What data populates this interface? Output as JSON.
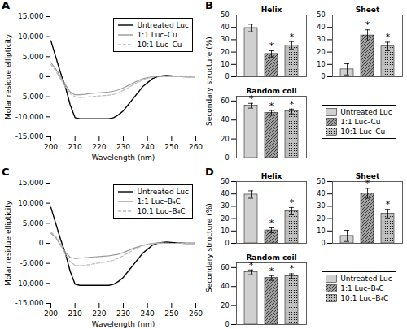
{
  "chart_data": [
    {
      "type": "line",
      "annotations": [
        {
          "text": "A"
        }
      ],
      "x_label": "Wavelength (nm)",
      "y_label": "Molar residue ellipticity",
      "x": [
        200,
        202,
        204,
        206,
        208,
        210,
        212,
        214,
        216,
        218,
        220,
        222,
        224,
        226,
        228,
        230,
        232,
        234,
        236,
        238,
        240,
        242,
        244,
        246,
        248,
        250,
        252,
        254,
        256,
        258,
        260
      ],
      "series": [
        {
          "name": "Untreated Luc",
          "color": "black",
          "line_style": "solid",
          "values": [
            9000,
            5000,
            1000,
            -2500,
            -7000,
            -10200,
            -10500,
            -10500,
            -10500,
            -10500,
            -10500,
            -10500,
            -10500,
            -10200,
            -9500,
            -8500,
            -7000,
            -5500,
            -4000,
            -2500,
            -1500,
            -500,
            0,
            200,
            300,
            200,
            100,
            50,
            0,
            0,
            0
          ]
        },
        {
          "name": "1:1 Luc–Cu",
          "color": "#999999",
          "line_style": "solid",
          "values": [
            3500,
            2000,
            0,
            -2000,
            -3800,
            -4500,
            -4500,
            -4400,
            -4200,
            -4100,
            -4000,
            -3900,
            -3800,
            -3600,
            -3300,
            -2800,
            -2200,
            -1600,
            -1000,
            -500,
            -200,
            0,
            100,
            100,
            50,
            0,
            0,
            0,
            0,
            0,
            0
          ]
        },
        {
          "name": "10:1 Luc–Cu",
          "color": "#bbbbbb",
          "line_style": "dashed",
          "values": [
            3000,
            1500,
            -500,
            -2500,
            -4200,
            -5000,
            -5200,
            -5100,
            -5000,
            -4900,
            -4800,
            -4700,
            -4600,
            -4400,
            -4000,
            -3400,
            -2800,
            -2000,
            -1400,
            -800,
            -400,
            -100,
            100,
            100,
            50,
            0,
            0,
            0,
            0,
            0,
            0
          ]
        }
      ],
      "xlim": [
        200,
        260
      ],
      "xticks": [
        200,
        210,
        220,
        230,
        240,
        250,
        260
      ],
      "ylim": [
        -15000,
        15000
      ],
      "yticks": [
        {
          "value": -15000,
          "label": "-15,000"
        },
        {
          "value": -10000,
          "label": "-10,000"
        },
        {
          "value": -5000,
          "label": "-5,000"
        },
        0,
        {
          "value": 5000,
          "label": "5,000"
        },
        {
          "value": 10000,
          "label": "10,000"
        },
        {
          "value": 15000,
          "label": "15,000"
        }
      ],
      "legend": "upper right"
    },
    {
      "type": "bar",
      "title": "Helix",
      "y_label": "Secondary structure (%)",
      "legend": "lower right",
      "annotations": [
        {
          "text": "B"
        },
        {
          "category": "1:1 Luc–Cu",
          "text": "*"
        },
        {
          "category": "10:1 Luc–Cu",
          "text": "*"
        }
      ],
      "categories": [
        "Untreated Luc",
        "1:1 Luc–Cu",
        "10:1 Luc–Cu"
      ],
      "values": [
        39.5,
        18.5,
        25.5
      ],
      "errors": [
        3.0,
        2.5,
        3.0
      ],
      "colors": [
        "#d0d0d0",
        "#a0a0a0",
        "#c0c0c0"
      ],
      "ylim": [
        0,
        50
      ],
      "yticks": [
        0,
        10,
        20,
        30,
        40,
        50
      ],
      "tick_labels": "y"
    },
    {
      "type": "bar",
      "title": "Sheet",
      "annotations": [
        {
          "category": "1:1 Luc–Cu",
          "text": "*"
        },
        {
          "category": "10:1 Luc–Cu",
          "text": "*"
        }
      ],
      "categories": [
        "Untreated Luc",
        "1:1 Luc–Cu",
        "10:1 Luc–Cu"
      ],
      "values": [
        6.0,
        33.5,
        24.5
      ],
      "errors": [
        4.5,
        4.5,
        3.5
      ],
      "colors": [
        "#d0d0d0",
        "#a0a0a0",
        "#c0c0c0"
      ],
      "ylim": [
        0,
        50
      ],
      "yticks": [
        0,
        10,
        20,
        30,
        40,
        50
      ],
      "tick_labels": "y"
    },
    {
      "type": "bar",
      "title": "Random coil",
      "annotations": [
        {
          "category": "Untreated Luc",
          "text": "*"
        },
        {
          "category": "1:1 Luc–Cu",
          "text": "*"
        },
        {
          "category": "10:1 Luc–Cu",
          "text": "*"
        }
      ],
      "categories": [
        "Untreated Luc",
        "1:1 Luc–Cu",
        "10:1 Luc–Cu"
      ],
      "values": [
        55.0,
        47.5,
        49.0
      ],
      "errors": [
        2.5,
        2.5,
        2.5
      ],
      "colors": [
        "#d0d0d0",
        "#a0a0a0",
        "#c0c0c0"
      ],
      "ylim": [
        0,
        65
      ],
      "yticks": [
        0,
        20,
        40,
        60
      ],
      "tick_labels": "y"
    },
    {
      "type": "line",
      "annotations": [
        {
          "text": "C"
        }
      ],
      "x_label": "Wavelength (nm)",
      "y_label": "Molar residue ellipticity",
      "x": [
        200,
        202,
        204,
        206,
        208,
        210,
        212,
        214,
        216,
        218,
        220,
        222,
        224,
        226,
        228,
        230,
        232,
        234,
        236,
        238,
        240,
        242,
        244,
        246,
        248,
        250,
        252,
        254,
        256,
        258,
        260
      ],
      "series": [
        {
          "name": "Untreated Luc",
          "color": "black",
          "line_style": "solid",
          "values": [
            9000,
            5000,
            1000,
            -2500,
            -7000,
            -10200,
            -10500,
            -10500,
            -10500,
            -10500,
            -10500,
            -10500,
            -10500,
            -10200,
            -9500,
            -8500,
            -7000,
            -5500,
            -4000,
            -2500,
            -1500,
            -500,
            0,
            200,
            300,
            200,
            100,
            50,
            0,
            0,
            0
          ]
        },
        {
          "name": "1:1 Luc–B₄C",
          "color": "#999999",
          "line_style": "solid",
          "values": [
            2500,
            1500,
            -500,
            -2200,
            -3500,
            -3800,
            -3700,
            -3600,
            -3500,
            -3400,
            -3300,
            -3200,
            -3100,
            -2900,
            -2700,
            -2300,
            -1800,
            -1300,
            -900,
            -500,
            -200,
            0,
            100,
            100,
            50,
            0,
            0,
            0,
            0,
            0,
            0
          ]
        },
        {
          "name": "10:1 Luc–B₄C",
          "color": "#bbbbbb",
          "line_style": "dashed",
          "values": [
            2800,
            1800,
            -200,
            -2800,
            -4500,
            -5500,
            -5600,
            -5500,
            -5300,
            -5100,
            -4900,
            -4700,
            -4500,
            -4200,
            -3700,
            -3100,
            -2400,
            -1700,
            -1100,
            -600,
            -300,
            -100,
            0,
            100,
            50,
            0,
            0,
            0,
            0,
            0,
            0
          ]
        }
      ],
      "xlim": [
        200,
        260
      ],
      "xticks": [
        200,
        210,
        220,
        230,
        240,
        250,
        260
      ],
      "ylim": [
        -15000,
        15000
      ],
      "yticks": [
        {
          "value": -15000,
          "label": "-15,000"
        },
        {
          "value": -10000,
          "label": "-10,000"
        },
        {
          "value": -5000,
          "label": "-5,000"
        },
        0,
        {
          "value": 5000,
          "label": "5,000"
        },
        {
          "value": 10000,
          "label": "10,000"
        },
        {
          "value": 15000,
          "label": "15,000"
        }
      ],
      "legend": "upper right"
    },
    {
      "type": "bar",
      "title": "Helix",
      "y_label": "Secondary structure (%)",
      "legend": "lower right",
      "annotations": [
        {
          "text": "D"
        },
        {
          "category": "1:1 Luc–B₄C",
          "text": "*"
        },
        {
          "category": "10:1 Luc–B₄C",
          "text": "*"
        }
      ],
      "categories": [
        "Untreated Luc",
        "1:1 Luc–B₄C",
        "10:1 Luc–B₄C"
      ],
      "values": [
        39.5,
        10.5,
        26.0
      ],
      "errors": [
        3.0,
        2.0,
        3.0
      ],
      "colors": [
        "#d0d0d0",
        "#a0a0a0",
        "#c0c0c0"
      ],
      "ylim": [
        0,
        50
      ],
      "yticks": [
        0,
        10,
        20,
        30,
        40,
        50
      ],
      "tick_labels": "y"
    },
    {
      "type": "bar",
      "title": "Sheet",
      "annotations": [
        {
          "category": "1:1 Luc–B₄C",
          "text": "*"
        },
        {
          "category": "10:1 Luc–B₄C",
          "text": "*"
        }
      ],
      "categories": [
        "Untreated Luc",
        "1:1 Luc–B₄C",
        "10:1 Luc–B₄C"
      ],
      "values": [
        6.0,
        40.5,
        24.0
      ],
      "errors": [
        4.5,
        4.0,
        3.5
      ],
      "colors": [
        "#d0d0d0",
        "#a0a0a0",
        "#c0c0c0"
      ],
      "ylim": [
        0,
        50
      ],
      "yticks": [
        0,
        10,
        20,
        30,
        40,
        50
      ],
      "tick_labels": "y"
    },
    {
      "type": "bar",
      "title": "Random coil",
      "annotations": [
        {
          "category": "Untreated Luc",
          "text": "*"
        },
        {
          "category": "1:1 Luc–B₄C",
          "text": "*"
        },
        {
          "category": "10:1 Luc–B₄C",
          "text": "*"
        }
      ],
      "categories": [
        "Untreated Luc",
        "1:1 Luc–B₄C",
        "10:1 Luc–B₄C"
      ],
      "values": [
        55.0,
        49.0,
        51.0
      ],
      "errors": [
        2.5,
        2.5,
        2.5
      ],
      "colors": [
        "#d0d0d0",
        "#a0a0a0",
        "#c0c0c0"
      ],
      "ylim": [
        0,
        65
      ],
      "yticks": [
        0,
        20,
        40,
        60
      ],
      "tick_labels": "y"
    }
  ]
}
